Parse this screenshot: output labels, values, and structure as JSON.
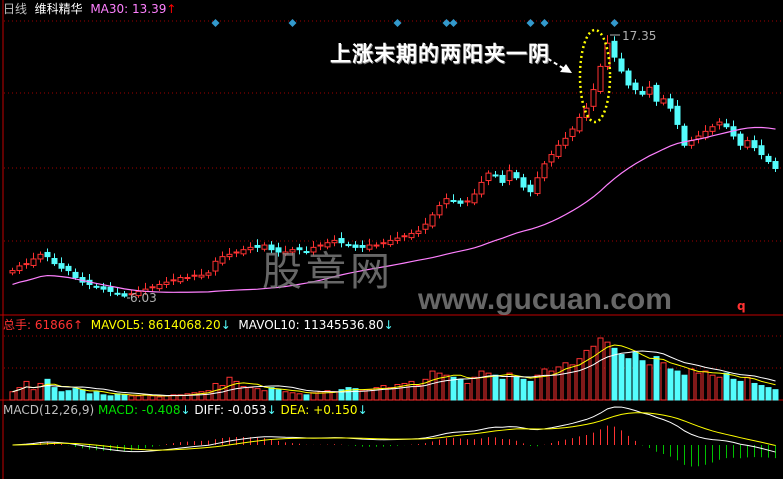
{
  "header": {
    "period": "日线",
    "stock_name": "维科精华",
    "ma30_label": "MA30: 13.39",
    "ma30_arrow": "↑"
  },
  "volume_header": {
    "total_label": "总手: 61866",
    "total_arrow": "↑",
    "mavol5_label": "MAVOL5: 8614068.20",
    "mavol5_arrow": "↓",
    "mavol10_label": "MAVOL10: 11345536.80",
    "mavol10_arrow": "↓"
  },
  "macd_header": {
    "name": "MACD(12,26,9)",
    "macd_label": "MACD: -0.408",
    "macd_arrow": "↓",
    "diff_label": "DIFF: -0.053",
    "diff_arrow": "↓",
    "dea_label": "DEA: +0.150",
    "dea_arrow": "↓"
  },
  "annotation": "上涨末期的两阳夹一阴",
  "high_marker": "17.35",
  "low_marker": "6.03",
  "q_marker": "q",
  "watermark_cn": "股章网",
  "watermark_url": "www.gucuan.com",
  "colors": {
    "up": "#ff3232",
    "down": "#54fcfc",
    "ma30": "#ff80ff",
    "mavol5": "#ffff00",
    "mavol10": "#ffffff",
    "grid": "#a00000",
    "diamond": "#3399cc",
    "ellipse": "#ffff00"
  },
  "chart_data": {
    "type": "candlestick",
    "price_range": [
      5.5,
      18
    ],
    "high": 17.35,
    "low": 6.03,
    "close": [
      7.2,
      7.4,
      7.5,
      7.7,
      7.9,
      7.8,
      7.5,
      7.3,
      7.2,
      6.9,
      6.7,
      6.6,
      6.5,
      6.4,
      6.3,
      6.2,
      6.1,
      6.2,
      6.3,
      6.4,
      6.5,
      6.6,
      6.7,
      6.8,
      6.9,
      6.9,
      7.0,
      7.0,
      7.1,
      7.6,
      7.8,
      7.9,
      8.0,
      8.1,
      8.2,
      8.2,
      8.3,
      8.1,
      8.0,
      8.0,
      8.1,
      8.1,
      8.0,
      8.2,
      8.3,
      8.4,
      8.5,
      8.4,
      8.3,
      8.2,
      8.2,
      8.3,
      8.3,
      8.4,
      8.5,
      8.6,
      8.7,
      8.8,
      8.9,
      9.2,
      9.6,
      10.0,
      10.3,
      10.2,
      10.1,
      10.2,
      10.5,
      11.0,
      11.4,
      11.3,
      11.0,
      11.5,
      11.2,
      10.8,
      10.6,
      11.2,
      11.8,
      12.2,
      12.6,
      12.9,
      13.3,
      13.8,
      14.2,
      15.0,
      16.0,
      17.0,
      16.4,
      15.8,
      15.2,
      15.0,
      14.8,
      15.1,
      14.5,
      14.6,
      14.2,
      13.5,
      12.6,
      12.8,
      13.0,
      13.2,
      13.4,
      13.6,
      13.4,
      13.0,
      12.6,
      12.8,
      12.5,
      12.2,
      11.9,
      11.6
    ],
    "volume": [
      8,
      12,
      18,
      10,
      16,
      20,
      12,
      8,
      9,
      11,
      10,
      6,
      8,
      5,
      4,
      6,
      5,
      4,
      4,
      5,
      4,
      3,
      4,
      5,
      5,
      6,
      7,
      8,
      9,
      16,
      14,
      22,
      18,
      13,
      12,
      11,
      9,
      12,
      10,
      8,
      7,
      6,
      5,
      7,
      8,
      9,
      8,
      10,
      12,
      11,
      9,
      10,
      12,
      14,
      12,
      15,
      16,
      18,
      14,
      20,
      28,
      26,
      24,
      22,
      20,
      16,
      22,
      28,
      26,
      24,
      20,
      26,
      22,
      20,
      18,
      24,
      30,
      28,
      32,
      36,
      34,
      40,
      48,
      52,
      60,
      56,
      50,
      44,
      40,
      46,
      38,
      34,
      42,
      36,
      30,
      28,
      24,
      30,
      26,
      28,
      24,
      22,
      26,
      20,
      18,
      22,
      16,
      14,
      12,
      10
    ],
    "diamonds_at_index": [
      29,
      40,
      55,
      62,
      63,
      74,
      76,
      86
    ]
  }
}
